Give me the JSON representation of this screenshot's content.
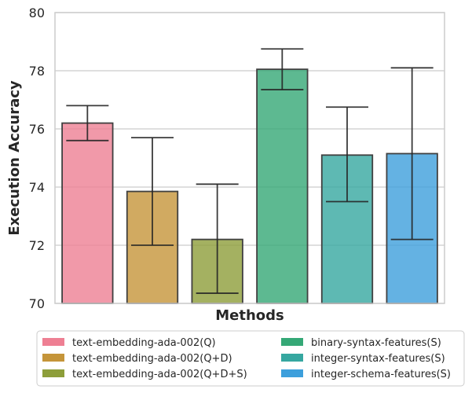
{
  "chart_data": {
    "type": "bar",
    "title": "",
    "xlabel": "Methods",
    "ylabel": "Execution Accuracy",
    "ylim": [
      70,
      80
    ],
    "yticks": [
      70,
      72,
      74,
      76,
      78,
      80
    ],
    "grid": true,
    "legend_position": "bottom",
    "legend_columns": 2,
    "series": [
      {
        "name": "text-embedding-ada-002(Q)",
        "value": 76.2,
        "err_low": 75.6,
        "err_high": 76.8,
        "color": "#ee7f93"
      },
      {
        "name": "text-embedding-ada-002(Q+D)",
        "value": 73.85,
        "err_low": 72.0,
        "err_high": 75.7,
        "color": "#c5953a"
      },
      {
        "name": "text-embedding-ada-002(Q+D+S)",
        "value": 72.2,
        "err_low": 70.35,
        "err_high": 74.1,
        "color": "#8d9e3a"
      },
      {
        "name": "binary-syntax-features(S)",
        "value": 78.05,
        "err_low": 77.35,
        "err_high": 78.75,
        "color": "#35a876"
      },
      {
        "name": "integer-syntax-features(S)",
        "value": 75.1,
        "err_low": 73.5,
        "err_high": 76.75,
        "color": "#36a7a0"
      },
      {
        "name": "integer-schema-features(S)",
        "value": 75.15,
        "err_low": 72.2,
        "err_high": 78.1,
        "color": "#3d9fdc"
      }
    ]
  }
}
